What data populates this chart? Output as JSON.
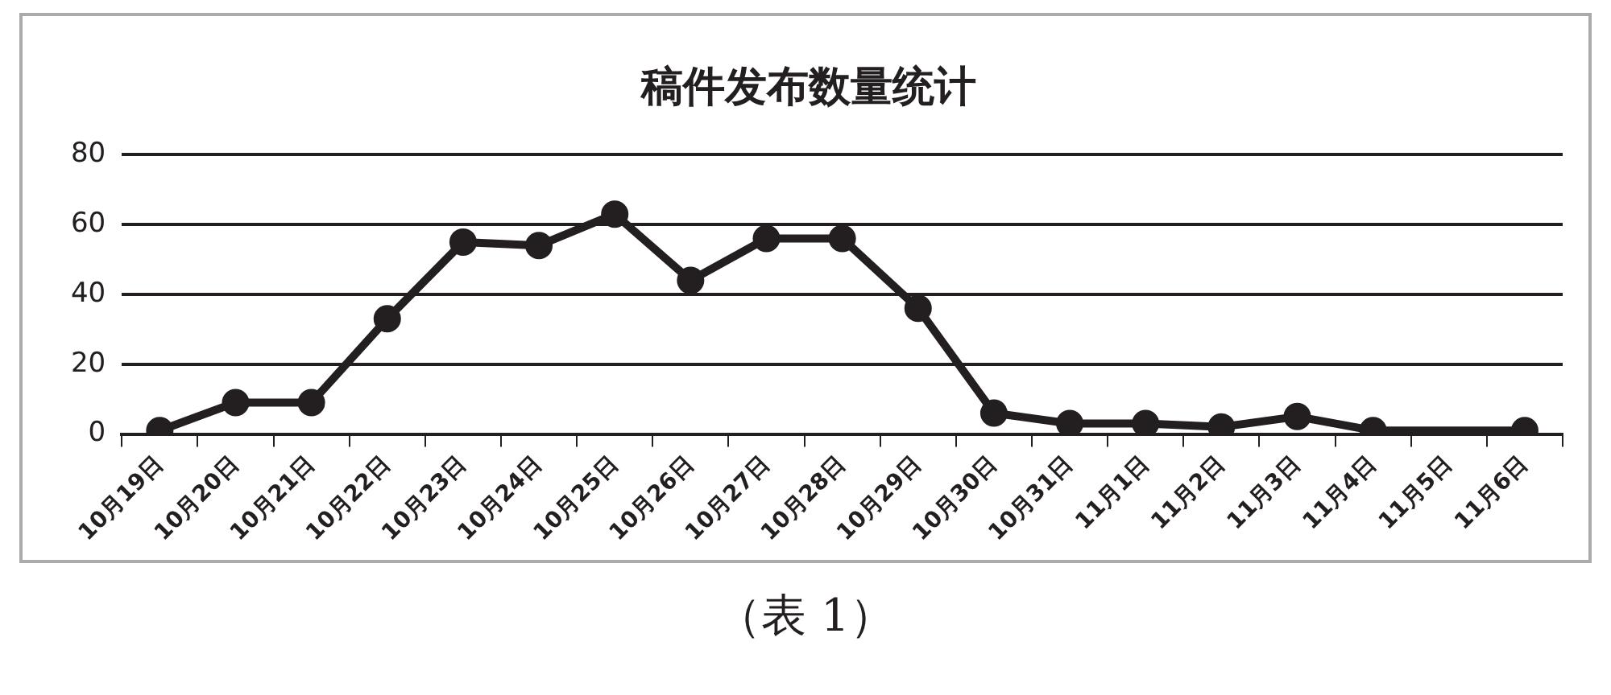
{
  "chart_data": {
    "type": "line",
    "title": "稿件发布数量统计",
    "categories": [
      "10月19日",
      "10月20日",
      "10月21日",
      "10月22日",
      "10月23日",
      "10月24日",
      "10月25日",
      "10月26日",
      "10月27日",
      "10月28日",
      "10月29日",
      "10月30日",
      "10月31日",
      "11月1日",
      "11月2日",
      "11月3日",
      "11月4日",
      "11月5日",
      "11月6日"
    ],
    "series": [
      {
        "color": "#231f20",
        "values": [
          1,
          9,
          9,
          33,
          55,
          54,
          63,
          44,
          56,
          56,
          36,
          6,
          3,
          3,
          2,
          5,
          1,
          null,
          1
        ]
      }
    ],
    "ylim": [
      0,
      80
    ],
    "yticks": [
      0,
      20,
      40,
      60,
      80
    ],
    "grid": "y",
    "legend": false,
    "marker": "circle",
    "line_style": "solid",
    "annotations": [
      "（表 1）"
    ]
  }
}
